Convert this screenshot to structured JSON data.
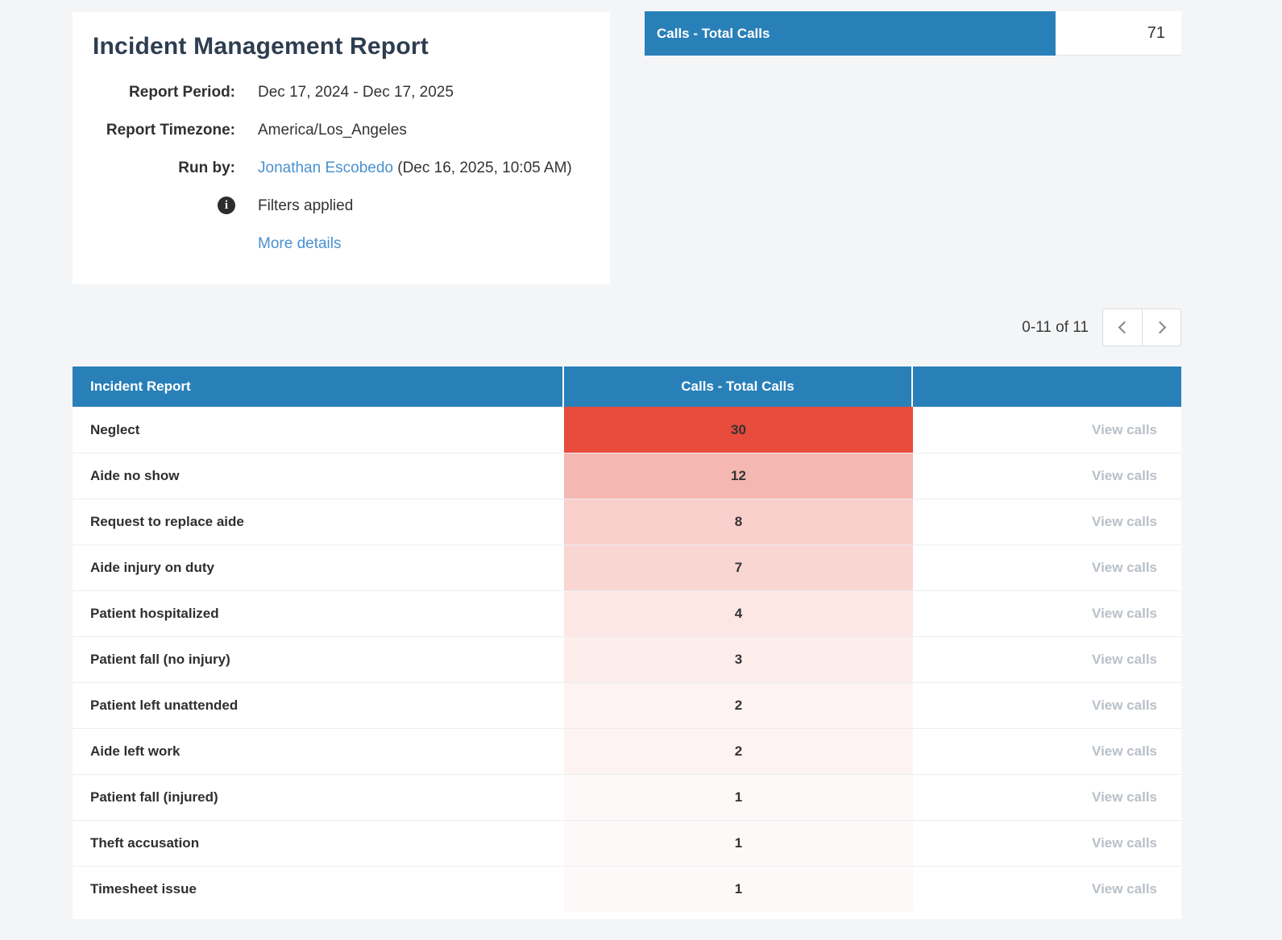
{
  "report": {
    "title": "Incident Management Report",
    "meta": [
      {
        "label": "Report Period:",
        "value": "Dec 17, 2024 - Dec 17, 2025"
      },
      {
        "label": "Report Timezone:",
        "value": "America/Los_Angeles"
      },
      {
        "label": "Run by:",
        "link": "Jonathan Escobedo",
        "suffix": " (Dec 16, 2025, 10:05 AM)"
      }
    ],
    "filters_applied": "Filters applied",
    "info_icon_glyph": "i",
    "more_details": "More details"
  },
  "summary": {
    "label": "Calls - Total Calls",
    "value": "71"
  },
  "pagination": {
    "range": "0-11 of 11",
    "prev_icon": "chevron-left",
    "next_icon": "chevron-right"
  },
  "table": {
    "columns": [
      "Incident Report",
      "Calls - Total Calls",
      ""
    ],
    "action_label": "View calls",
    "max_value": 30,
    "rows": [
      {
        "label": "Neglect",
        "value": 30
      },
      {
        "label": "Aide no show",
        "value": 12
      },
      {
        "label": "Request to replace aide",
        "value": 8
      },
      {
        "label": "Aide injury on duty",
        "value": 7
      },
      {
        "label": "Patient hospitalized",
        "value": 4
      },
      {
        "label": "Patient fall (no injury)",
        "value": 3
      },
      {
        "label": "Patient left unattended",
        "value": 2
      },
      {
        "label": "Aide left work",
        "value": 2
      },
      {
        "label": "Patient fall (injured)",
        "value": 1
      },
      {
        "label": "Theft accusation",
        "value": 1
      },
      {
        "label": "Timesheet issue",
        "value": 1
      }
    ]
  },
  "colors": {
    "header_blue": "#2980b9",
    "heat_red_rgb": "231,76,60",
    "link_blue": "#4a90d0",
    "page_bg": "#f4f5f7",
    "muted_gray": "#b9c0c8"
  }
}
